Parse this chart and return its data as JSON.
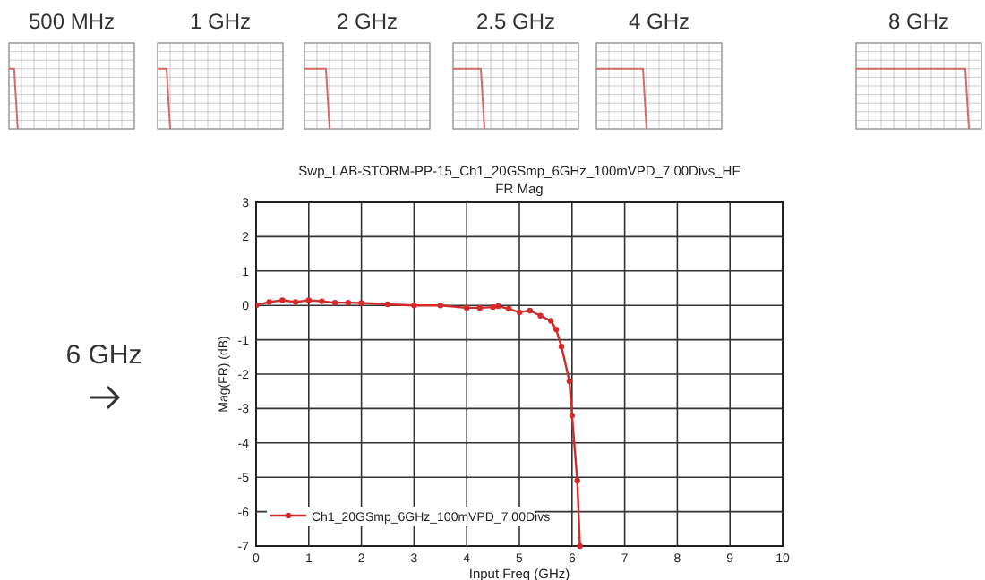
{
  "chart_data": {
    "type": "line",
    "title": "Swp_LAB-STORM-PP-15_Ch1_20GSmp_6GHz_100mVPD_7.00Divs_HF",
    "subtitle": "FR Mag",
    "xlabel": "Input Freq (GHz)",
    "ylabel": "Mag(FR) (dB)",
    "annotations": [
      "500 MHz",
      "1 GHz",
      "2 GHz",
      "2.5 GHz",
      "4 GHz",
      "8 GHz",
      "6 GHz"
    ],
    "series": [
      {
        "name": "Ch1_20GSmp_6GHz_100mVPD_7.00Divs",
        "color": "#d42a2a",
        "x": [
          0,
          0.25,
          0.5,
          0.75,
          1,
          1.25,
          1.5,
          1.75,
          2,
          2.5,
          3,
          3.5,
          4,
          4.25,
          4.5,
          4.6,
          4.8,
          5,
          5.2,
          5.4,
          5.6,
          5.7,
          5.8,
          5.95,
          6,
          6.1,
          6.15
        ],
        "values": [
          0,
          0.1,
          0.15,
          0.1,
          0.15,
          0.12,
          0.08,
          0.08,
          0.07,
          0.03,
          0,
          0,
          -0.07,
          -0.07,
          -0.05,
          -0.02,
          -0.1,
          -0.2,
          -0.15,
          -0.3,
          -0.45,
          -0.7,
          -1.2,
          -2.2,
          -3.2,
          -5.1,
          -7
        ]
      }
    ],
    "xlim": [
      0,
      10
    ],
    "xticks": [
      0,
      1,
      2,
      3,
      4,
      5,
      6,
      7,
      8,
      9,
      10
    ],
    "ylim": [
      -7,
      3
    ],
    "yticks": [
      -7,
      -6,
      -5,
      -4,
      -3,
      -2,
      -1,
      0,
      1,
      2,
      3
    ],
    "grid": true,
    "legend": "bottom left",
    "marker": "circle",
    "line_style": "solid"
  }
}
